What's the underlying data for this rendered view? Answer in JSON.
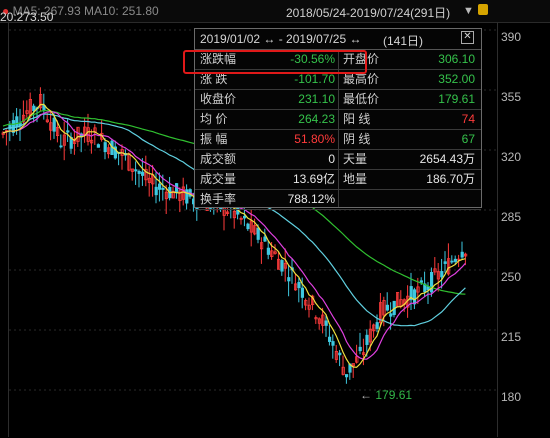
{
  "header": {
    "ma_text": "MA5: 267.93  MA10: 251.80",
    "date_range": "2018/05/24-2019/07/24(291日)",
    "price_marker": "20:273.50"
  },
  "y_axis": [
    "390",
    "355",
    "320",
    "285",
    "250",
    "215",
    "180"
  ],
  "low_label": "179.61",
  "stats_panel": {
    "title": "2019/01/02 ↔ - 2019/07/25 ↔",
    "days": "(141日)",
    "close_icon": "close-icon",
    "rows": [
      {
        "l_label": "涨跌幅",
        "l_value": "-30.56%",
        "l_color": "green",
        "r_label": "开盘价",
        "r_value": "306.10",
        "r_color": "green"
      },
      {
        "l_label": "涨  跌",
        "l_value": "-101.70",
        "l_color": "green",
        "r_label": "最高价",
        "r_value": "352.00",
        "r_color": "green"
      },
      {
        "l_label": "收盘价",
        "l_value": "231.10",
        "l_color": "green",
        "r_label": "最低价",
        "r_value": "179.61",
        "r_color": "green"
      },
      {
        "l_label": "均  价",
        "l_value": "264.23",
        "l_color": "green",
        "r_label": "阳  线",
        "r_value": "74",
        "r_color": "red"
      },
      {
        "l_label": "振  幅",
        "l_value": "51.80%",
        "l_color": "red",
        "r_label": "阴  线",
        "r_value": "67",
        "r_color": "green"
      },
      {
        "l_label": "成交额",
        "l_value": "0",
        "l_color": "white",
        "r_label": "天量",
        "r_value": "2654.43万",
        "r_color": "white"
      },
      {
        "l_label": "成交量",
        "l_value": "13.69亿",
        "l_color": "white",
        "r_label": "地量",
        "r_value": "186.70万",
        "r_color": "white"
      },
      {
        "l_label": "换手率",
        "l_value": "788.12%",
        "l_color": "white",
        "r_label": "",
        "r_value": "",
        "r_color": "white"
      }
    ]
  },
  "colors": {
    "up": "#ff3b3b",
    "down": "#3ec8e0",
    "ma5": "#f0e040",
    "ma10": "#e040e0",
    "ma20": "#60d0e0",
    "ma60": "#30c030",
    "grid": "#2a2a2a"
  }
}
